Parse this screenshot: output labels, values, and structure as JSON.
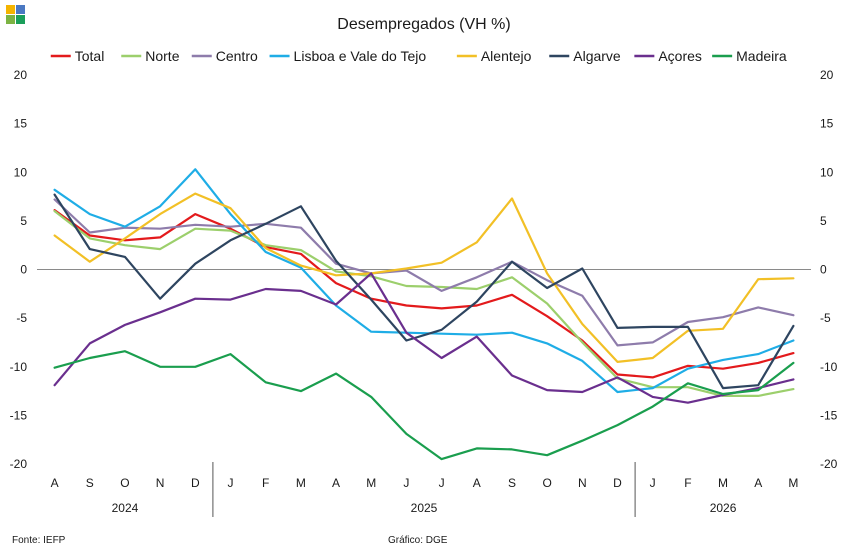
{
  "source_label": "Fonte: IEFP",
  "credit_label": "Gráfico: DGE",
  "logo_colors": [
    "#f4b400",
    "#4a78c2",
    "#7cb342",
    "#1a9e5a"
  ],
  "chart_data": {
    "type": "line",
    "title": "Desempregados  (VH %)",
    "xlabel": "",
    "ylabel": "",
    "ylim": [
      -20,
      20
    ],
    "yticks": [
      -20,
      -15,
      -10,
      -5,
      0,
      5,
      10,
      15,
      20
    ],
    "grid": false,
    "legend_position": "top",
    "categories": [
      "A",
      "S",
      "O",
      "N",
      "D",
      "J",
      "F",
      "M",
      "A",
      "M",
      "J",
      "J",
      "A",
      "S",
      "O",
      "N",
      "D",
      "J",
      "F",
      "M",
      "A",
      "M"
    ],
    "year_groups": [
      {
        "label": "2024",
        "start": 0,
        "end": 4
      },
      {
        "label": "2025",
        "start": 5,
        "end": 16
      },
      {
        "label": "2026",
        "start": 17,
        "end": 21
      }
    ],
    "series": [
      {
        "name": "Total",
        "color": "#e31a1c",
        "values": [
          6.1,
          3.5,
          3.0,
          3.3,
          5.7,
          4.2,
          2.3,
          1.6,
          -1.4,
          -3.0,
          -3.7,
          -4.0,
          -3.7,
          -2.6,
          -4.8,
          -7.3,
          -10.8,
          -11.1,
          -9.9,
          -10.2,
          -9.6,
          -8.6
        ]
      },
      {
        "name": "Norte",
        "color": "#9ccf6c",
        "values": [
          6.0,
          3.2,
          2.5,
          2.1,
          4.2,
          4.0,
          2.5,
          2.0,
          -0.2,
          -0.7,
          -1.7,
          -1.8,
          -2.0,
          -0.8,
          -3.5,
          -7.5,
          -11.2,
          -12.1,
          -12.1,
          -13.0,
          -13.0,
          -12.3
        ]
      },
      {
        "name": "Centro",
        "color": "#8e7cab",
        "values": [
          7.2,
          3.8,
          4.3,
          4.2,
          4.6,
          4.4,
          4.7,
          4.3,
          0.6,
          -0.4,
          -0.1,
          -2.2,
          -0.8,
          0.8,
          -1.1,
          -2.7,
          -7.8,
          -7.5,
          -5.4,
          -4.9,
          -3.9,
          -4.7
        ]
      },
      {
        "name": "Lisboa e Vale do Tejo",
        "color": "#1fade6",
        "values": [
          8.2,
          5.7,
          4.4,
          6.5,
          10.3,
          5.7,
          1.8,
          0.2,
          -3.7,
          -6.4,
          -6.5,
          -6.6,
          -6.7,
          -6.5,
          -7.6,
          -9.4,
          -12.6,
          -12.2,
          -10.2,
          -9.3,
          -8.7,
          -7.3
        ]
      },
      {
        "name": "Alentejo",
        "color": "#f2c026",
        "values": [
          3.5,
          0.8,
          3.2,
          5.7,
          7.8,
          6.3,
          2.2,
          0.4,
          -0.6,
          -0.4,
          0.1,
          0.7,
          2.8,
          7.3,
          -0.4,
          -5.6,
          -9.5,
          -9.1,
          -6.3,
          -6.1,
          -1.0,
          -0.9
        ]
      },
      {
        "name": "Algarve",
        "color": "#2e4560",
        "values": [
          7.7,
          2.1,
          1.3,
          -3.0,
          0.6,
          3.0,
          4.7,
          6.5,
          0.9,
          -3.1,
          -7.3,
          -6.2,
          -3.3,
          0.8,
          -1.9,
          0.1,
          -6.0,
          -5.9,
          -5.9,
          -12.2,
          -11.9,
          -5.8
        ]
      },
      {
        "name": "Açores",
        "color": "#6a2f8e",
        "values": [
          -11.9,
          -7.6,
          -5.7,
          -4.4,
          -3.0,
          -3.1,
          -2.0,
          -2.2,
          -3.6,
          -0.4,
          -6.5,
          -9.1,
          -6.9,
          -10.9,
          -12.4,
          -12.6,
          -11.1,
          -13.1,
          -13.7,
          -12.9,
          -12.2,
          -11.3
        ]
      },
      {
        "name": "Madeira",
        "color": "#1a9e4e",
        "values": [
          -10.1,
          -9.1,
          -8.4,
          -10.0,
          -10.0,
          -8.7,
          -11.6,
          -12.5,
          -10.7,
          -13.1,
          -16.9,
          -19.5,
          -18.4,
          -18.5,
          -19.1,
          -17.6,
          -16.0,
          -14.1,
          -11.7,
          -12.8,
          -12.4,
          -9.6
        ]
      }
    ]
  }
}
